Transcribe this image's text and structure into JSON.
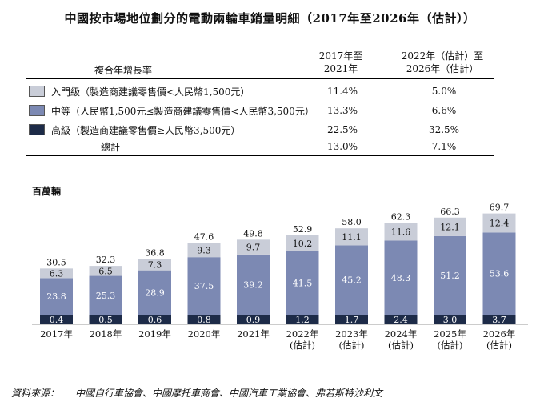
{
  "title": "中國按市場地位劃分的電動兩輪車銷量明細（2017年至2026年（估計））",
  "table": {
    "header_label": "複合年增長率",
    "col1_header": [
      "2017年至",
      "2021年"
    ],
    "col2_header": [
      "2022年（估計）至",
      "2026年（估計）"
    ],
    "rows": [
      {
        "label": "入門級（製造商建議零售價<人民幣1,500元）",
        "color": "#c9cdd8",
        "v1": "11.4%",
        "v2": "5.0%"
      },
      {
        "label": "中等（人民幣1,500元≤製造商建議零售價<人民幣3,500元）",
        "color": "#7c89b3",
        "v1": "13.3%",
        "v2": "6.6%"
      },
      {
        "label": "高級（製造商建議零售價≥人民幣3,500元）",
        "color": "#1d2b48",
        "v1": "22.5%",
        "v2": "32.5%"
      }
    ],
    "total": {
      "label": "總計",
      "v1": "13.0%",
      "v2": "7.1%"
    }
  },
  "chart_data": {
    "type": "bar",
    "stacked": true,
    "unit_label": "百萬輛",
    "categories": [
      "2017年",
      "2018年",
      "2019年",
      "2020年",
      "2021年",
      "2022年\n(估計)",
      "2023年\n(估計)",
      "2024年\n(估計)",
      "2025年\n(估計)",
      "2026年\n(估計)"
    ],
    "series": [
      {
        "name": "高級",
        "color": "#1d2b48",
        "label_color": "#ffffff",
        "values": [
          0.4,
          0.5,
          0.6,
          0.8,
          0.9,
          1.2,
          1.7,
          2.4,
          3.0,
          3.7
        ]
      },
      {
        "name": "中等",
        "color": "#7c89b3",
        "label_color": "#ffffff",
        "values": [
          23.8,
          25.3,
          28.9,
          37.5,
          39.2,
          41.5,
          45.2,
          48.3,
          51.2,
          53.6
        ]
      },
      {
        "name": "入門級",
        "color": "#c9cdd8",
        "label_color": "#111111",
        "values": [
          6.3,
          6.5,
          7.3,
          9.3,
          9.7,
          10.2,
          11.1,
          11.6,
          12.1,
          12.4
        ]
      }
    ],
    "totals": [
      30.5,
      32.3,
      36.8,
      47.6,
      49.8,
      52.9,
      58.0,
      62.3,
      66.3,
      69.7
    ],
    "ylim": [
      0,
      70
    ]
  },
  "source": {
    "label": "資料來源：",
    "text": "中國自行車協會、中國摩托車商會、中國汽車工業協會、弗若斯特沙利文"
  }
}
